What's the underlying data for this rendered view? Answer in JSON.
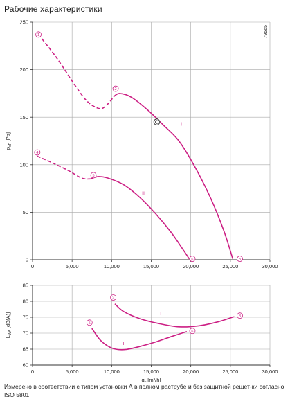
{
  "page": {
    "title": "Рабочие характеристики",
    "footnote": "Измерено в соответствии с типом установки А в полном раструбе и без защитной решет-ки согласно ISO 5801."
  },
  "colors": {
    "curve": "#cc1f84",
    "grid": "#a8a8a8",
    "axis": "#333333",
    "text": "#222222"
  },
  "chart_data": [
    {
      "id": "pressure",
      "type": "line",
      "ylabel_main": "p",
      "ylabel_sub": "sF",
      "ylabel_unit": " [Pa]",
      "xlabel_main": "q",
      "xlabel_sub": "v",
      "xlabel_unit": " [m³/h]",
      "side_code": "79565",
      "xlim": [
        0,
        30000
      ],
      "ylim": [
        0,
        250
      ],
      "x_ticks": [
        0,
        5000,
        10000,
        15000,
        20000,
        25000,
        30000
      ],
      "x_tick_labels": [
        "0",
        "5,000",
        "10,000",
        "15,000",
        "20,000",
        "25,000",
        "30,000"
      ],
      "y_ticks": [
        0,
        50,
        100,
        150,
        200,
        250
      ],
      "y_tick_labels": [
        "0",
        "50",
        "100",
        "150",
        "200",
        "250"
      ],
      "grid": true,
      "series": [
        {
          "label": "I",
          "label_at": [
            18800,
            141
          ],
          "dashed": [
            [
              750,
              237
            ],
            [
              3000,
              213
            ],
            [
              5500,
              182
            ],
            [
              7000,
              166
            ],
            [
              8500,
              159
            ],
            [
              9400,
              163
            ],
            [
              10300,
              172
            ]
          ],
          "solid": [
            [
              10300,
              172
            ],
            [
              11000,
              175
            ],
            [
              12500,
              171
            ],
            [
              14500,
              158
            ],
            [
              16500,
              142
            ],
            [
              18500,
              125
            ],
            [
              20500,
              98
            ],
            [
              22500,
              65
            ],
            [
              24200,
              30
            ],
            [
              25300,
              1
            ]
          ]
        },
        {
          "label": "II",
          "label_at": [
            14000,
            68
          ],
          "dashed": [
            [
              600,
              109
            ],
            [
              2500,
              102
            ],
            [
              4500,
              94
            ],
            [
              6200,
              86
            ],
            [
              7300,
              85
            ]
          ],
          "solid": [
            [
              7300,
              85
            ],
            [
              8300,
              87.5
            ],
            [
              9500,
              86
            ],
            [
              11500,
              79
            ],
            [
              13500,
              66
            ],
            [
              15500,
              49
            ],
            [
              17500,
              29
            ],
            [
              19000,
              11
            ],
            [
              19800,
              1
            ]
          ]
        }
      ],
      "markers": [
        {
          "num": "1",
          "x": 750,
          "y": 237
        },
        {
          "num": "2",
          "x": 10500,
          "y": 180
        },
        {
          "num": "3",
          "x": 26200,
          "y": 1
        },
        {
          "num": "4",
          "x": 600,
          "y": 113
        },
        {
          "num": "5",
          "x": 7700,
          "y": 89
        },
        {
          "num": "6",
          "x": 20200,
          "y": 1
        }
      ],
      "operating_point": {
        "x": 15700,
        "y": 145
      }
    },
    {
      "id": "noise",
      "type": "line",
      "ylabel_main": "L",
      "ylabel_sub": "WA",
      "ylabel_unit": " [dB(A)]",
      "xlabel_main": "q",
      "xlabel_sub": "v",
      "xlabel_unit": " [m³/h]",
      "xlim": [
        0,
        30000
      ],
      "ylim": [
        60,
        85
      ],
      "x_ticks": [
        0,
        5000,
        10000,
        15000,
        20000,
        25000,
        30000
      ],
      "x_tick_labels": [
        "0",
        "5,000",
        "10,000",
        "15,000",
        "20,000",
        "25,000",
        "30,000"
      ],
      "y_ticks": [
        60,
        65,
        70,
        75,
        80,
        85
      ],
      "y_tick_labels": [
        "60",
        "65",
        "70",
        "75",
        "80",
        "85"
      ],
      "grid": true,
      "series": [
        {
          "label": "I",
          "label_at": [
            16200,
            75.7
          ],
          "solid": [
            [
              10400,
              79.2
            ],
            [
              11500,
              76.8
            ],
            [
              13500,
              74.6
            ],
            [
              16000,
              73.0
            ],
            [
              18500,
              72.0
            ],
            [
              21000,
              72.3
            ],
            [
              23500,
              73.6
            ],
            [
              25500,
              75.2
            ]
          ]
        },
        {
          "label": "II",
          "label_at": [
            11600,
            66.3
          ],
          "solid": [
            [
              7500,
              71.5
            ],
            [
              8500,
              68.0
            ],
            [
              9500,
              66.0
            ],
            [
              10500,
              65.0
            ],
            [
              11800,
              64.9
            ],
            [
              13500,
              65.8
            ],
            [
              15500,
              67.2
            ],
            [
              17500,
              68.9
            ],
            [
              19500,
              70.5
            ]
          ]
        }
      ],
      "markers": [
        {
          "num": "2",
          "x": 10200,
          "y": 81.2
        },
        {
          "num": "3",
          "x": 26200,
          "y": 75.5
        },
        {
          "num": "5",
          "x": 7200,
          "y": 73.3
        },
        {
          "num": "6",
          "x": 20200,
          "y": 70.7
        }
      ]
    }
  ]
}
